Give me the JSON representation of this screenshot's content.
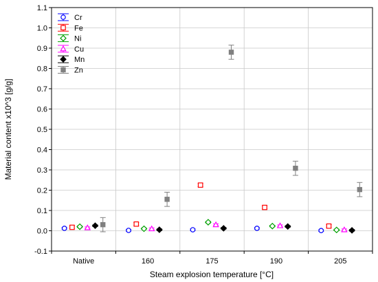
{
  "chart_data": {
    "type": "scatter",
    "title": "",
    "xlabel": "Steam explosion temperature [°C]",
    "ylabel": "Material content x10^3 [g/g]",
    "categories": [
      "Native",
      "160",
      "175",
      "190",
      "205"
    ],
    "ylim": [
      -0.1,
      1.1
    ],
    "yticks": [
      "-0.1",
      "0.0",
      "0.1",
      "0.2",
      "0.3",
      "0.4",
      "0.5",
      "0.6",
      "0.7",
      "0.8",
      "0.9",
      "1.0",
      "1.1"
    ],
    "grid": true,
    "legend_position": "top-left",
    "series": [
      {
        "name": "Cr",
        "color": "#0000ff",
        "marker": "circle-open",
        "values": [
          0.012,
          0.002,
          0.005,
          0.012,
          0.001
        ],
        "errors": [
          0.004,
          0.004,
          0.004,
          0.004,
          0.004
        ]
      },
      {
        "name": "Fe",
        "color": "#ff0000",
        "marker": "square-open",
        "values": [
          0.017,
          0.033,
          0.225,
          0.115,
          0.023
        ],
        "errors": [
          0.008,
          0.008,
          0.008,
          0.008,
          0.008
        ]
      },
      {
        "name": "Ni",
        "color": "#00a000",
        "marker": "diamond-open",
        "values": [
          0.02,
          0.01,
          0.042,
          0.023,
          0.004
        ],
        "errors": [
          0.004,
          0.004,
          0.004,
          0.004,
          0.004
        ]
      },
      {
        "name": "Cu",
        "color": "#ff00ff",
        "marker": "triangle-open",
        "values": [
          0.015,
          0.01,
          0.03,
          0.025,
          0.005
        ],
        "errors": [
          0.004,
          0.004,
          0.004,
          0.004,
          0.004
        ]
      },
      {
        "name": "Mn",
        "color": "#000000",
        "marker": "diamond-filled",
        "values": [
          0.025,
          0.005,
          0.012,
          0.021,
          0.002
        ],
        "errors": [
          0.004,
          0.004,
          0.004,
          0.004,
          0.004
        ]
      },
      {
        "name": "Zn",
        "color": "#808080",
        "marker": "square-filled",
        "values": [
          0.03,
          0.155,
          0.88,
          0.308,
          0.203
        ],
        "errors": [
          0.035,
          0.035,
          0.035,
          0.035,
          0.035
        ]
      }
    ]
  }
}
